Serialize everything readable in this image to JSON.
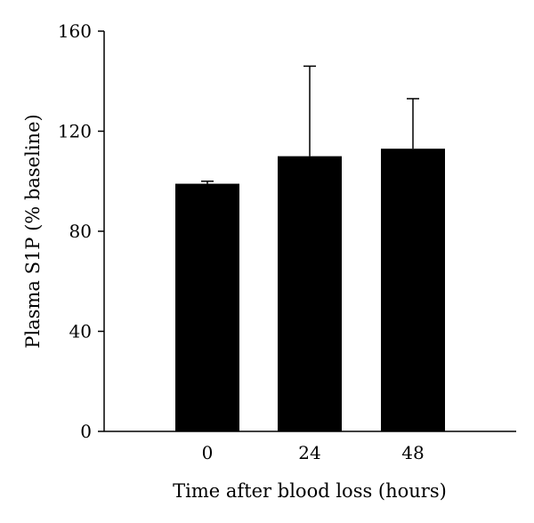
{
  "chart_data": {
    "type": "bar",
    "categories": [
      "0",
      "24",
      "48"
    ],
    "values": [
      99,
      110,
      113
    ],
    "error_upper": [
      100,
      146,
      133
    ],
    "xlabel": "Time after blood loss (hours)",
    "ylabel": "Plasma S1P (% baseline)",
    "ylim": [
      0,
      160
    ],
    "yticks": [
      "0",
      "40",
      "80",
      "120",
      "160"
    ],
    "ytick_values": [
      0,
      40,
      80,
      120,
      160
    ],
    "grid": false,
    "bar_color": "#000000"
  }
}
